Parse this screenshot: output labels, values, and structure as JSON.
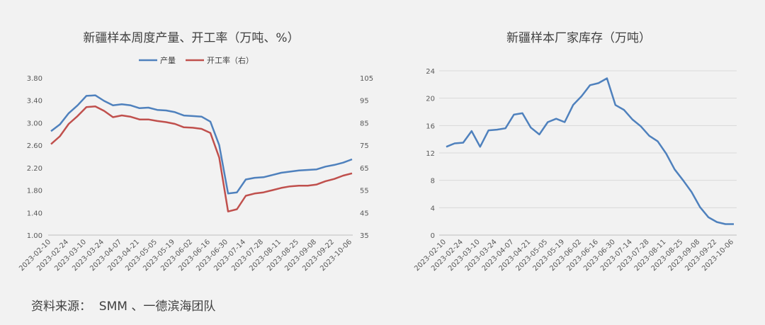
{
  "colors": {
    "blue": "#4f81bd",
    "red": "#c0504d",
    "grid": "#d9d9d9",
    "axis": "#bfbfbf"
  },
  "dates": [
    "2023-02-10",
    "2023-02-17",
    "2023-02-24",
    "2023-03-03",
    "2023-03-10",
    "2023-03-17",
    "2023-03-24",
    "2023-03-31",
    "2023-04-07",
    "2023-04-14",
    "2023-04-21",
    "2023-04-28",
    "2023-05-05",
    "2023-05-12",
    "2023-05-19",
    "2023-05-26",
    "2023-06-02",
    "2023-06-09",
    "2023-06-16",
    "2023-06-23",
    "2023-06-30",
    "2023-07-07",
    "2023-07-14",
    "2023-07-21",
    "2023-07-28",
    "2023-08-04",
    "2023-08-11",
    "2023-08-18",
    "2023-08-25",
    "2023-09-01",
    "2023-09-08",
    "2023-09-15",
    "2023-09-22",
    "2023-09-29",
    "2023-10-06"
  ],
  "tick_labels": [
    "2023-02-10",
    "2023-02-24",
    "2023-03-10",
    "2023-03-24",
    "2023-04-07",
    "2023-04-21",
    "2023-05-05",
    "2023-05-19",
    "2023-06-02",
    "2023-06-16",
    "2023-06-30",
    "2023-07-14",
    "2023-07-28",
    "2023-08-11",
    "2023-08-25",
    "2023-09-08",
    "2023-09-22",
    "2023-10-06"
  ],
  "chart_data": [
    {
      "type": "line",
      "title": "新疆样本周度产量、开工率（万吨、%）",
      "legend_position": "top",
      "ylim": [
        1.0,
        3.8
      ],
      "y_ticks": [
        "1.00",
        "1.40",
        "1.80",
        "2.20",
        "2.60",
        "3.00",
        "3.40",
        "3.80"
      ],
      "y2lim": [
        35,
        105
      ],
      "y2_ticks": [
        "35",
        "45",
        "55",
        "65",
        "75",
        "85",
        "95",
        "105"
      ],
      "grid": false,
      "series": [
        {
          "name": "产量",
          "axis": "left",
          "color": "#4f81bd",
          "values": [
            2.85,
            2.97,
            3.17,
            3.31,
            3.48,
            3.49,
            3.39,
            3.31,
            3.33,
            3.31,
            3.26,
            3.27,
            3.23,
            3.22,
            3.19,
            3.13,
            3.12,
            3.11,
            3.02,
            2.6,
            1.74,
            1.76,
            1.99,
            2.02,
            2.03,
            2.07,
            2.11,
            2.13,
            2.15,
            2.16,
            2.17,
            2.22,
            2.25,
            2.29,
            2.35
          ]
        },
        {
          "name": "开工率（右）",
          "axis": "right",
          "color": "#c0504d",
          "values": [
            75.5,
            79.0,
            84.5,
            88.0,
            92.0,
            92.3,
            90.3,
            87.5,
            88.3,
            87.7,
            86.5,
            86.5,
            85.8,
            85.3,
            84.5,
            83.0,
            82.8,
            82.3,
            80.5,
            69.5,
            45.5,
            46.5,
            52.5,
            53.5,
            54.0,
            55.0,
            56.0,
            56.7,
            57.0,
            57.0,
            57.5,
            59.0,
            60.0,
            61.5,
            62.5
          ]
        }
      ]
    },
    {
      "type": "line",
      "title": "新疆样本厂家库存（万吨）",
      "ylim": [
        0,
        24
      ],
      "y_ticks": [
        "0",
        "4",
        "8",
        "12",
        "16",
        "20",
        "24"
      ],
      "grid": true,
      "series": [
        {
          "name": "",
          "color": "#4f81bd",
          "values": [
            12.9,
            13.4,
            13.5,
            15.2,
            12.9,
            15.3,
            15.4,
            15.6,
            17.6,
            17.8,
            15.7,
            14.7,
            16.5,
            17.0,
            16.5,
            19.0,
            20.3,
            21.9,
            22.2,
            22.9,
            19.0,
            18.3,
            16.9,
            15.9,
            14.5,
            13.7,
            11.9,
            9.6,
            8.0,
            6.3,
            4.1,
            2.6,
            1.9,
            1.6,
            1.6
          ]
        }
      ]
    }
  ],
  "source": "资料来源：  SMM 、一德滨海团队"
}
